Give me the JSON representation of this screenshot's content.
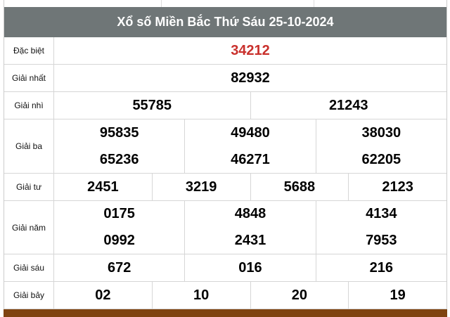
{
  "title": "Xổ số Miền Bắc Thứ Sáu 25-10-2024",
  "colors": {
    "header_bg": "#6f7677",
    "special": "#c9302c",
    "footer_bar": "#7f4310"
  },
  "rows": [
    {
      "label": "Đặc biệt",
      "cells": [
        [
          "34212"
        ]
      ]
    },
    {
      "label": "Giải nhất",
      "cells": [
        [
          "82932"
        ]
      ]
    },
    {
      "label": "Giải nhì",
      "cells": [
        [
          "55785"
        ],
        [
          "21243"
        ]
      ]
    },
    {
      "label": "Giải ba",
      "cells": [
        [
          "95835",
          "65236"
        ],
        [
          "49480",
          "46271"
        ],
        [
          "38030",
          "62205"
        ]
      ]
    },
    {
      "label": "Giải tư",
      "cells": [
        [
          "2451"
        ],
        [
          "3219"
        ],
        [
          "5688"
        ],
        [
          "2123"
        ]
      ]
    },
    {
      "label": "Giải năm",
      "cells": [
        [
          "0175",
          "0992"
        ],
        [
          "4848",
          "2431"
        ],
        [
          "4134",
          "7953"
        ]
      ]
    },
    {
      "label": "Giải sáu",
      "cells": [
        [
          "672"
        ],
        [
          "016"
        ],
        [
          "216"
        ]
      ]
    },
    {
      "label": "Giải bảy",
      "cells": [
        [
          "02"
        ],
        [
          "10"
        ],
        [
          "20"
        ],
        [
          "19"
        ]
      ]
    }
  ]
}
